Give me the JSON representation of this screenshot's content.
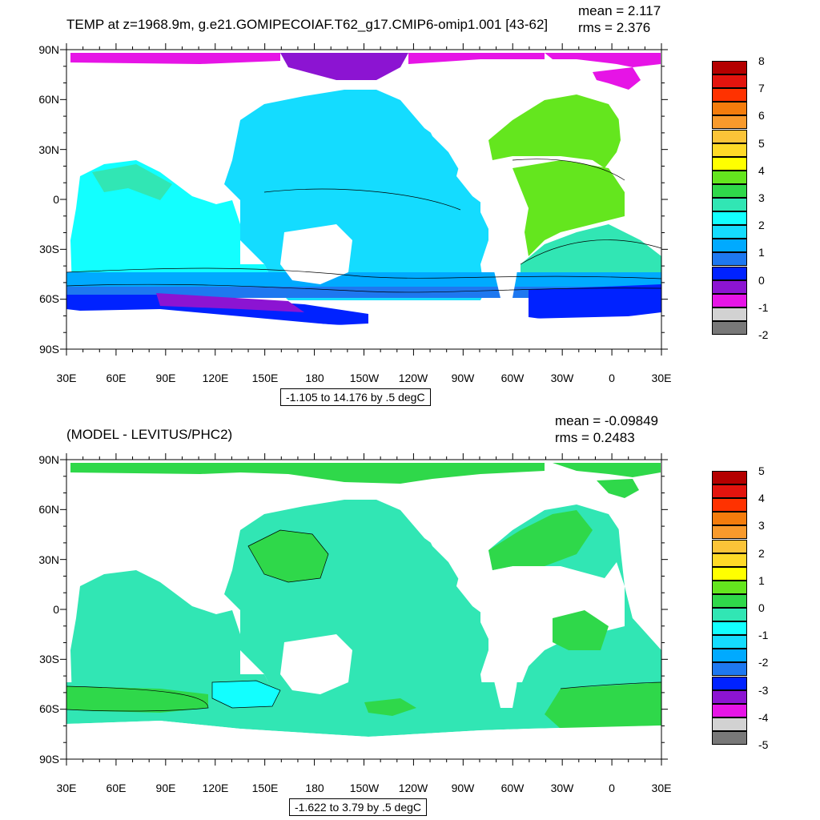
{
  "panels": [
    {
      "title": "TEMP at z=1968.9m, g.e21.GOMIPECOIAF.T62_g17.CMIP6-omip1.001 [43-62]",
      "mean_text": "mean = 2.117",
      "rms_text": "rms = 2.376",
      "range_text": "-1.105 to 14.176 by .5 degC",
      "colorbar_labels": [
        "8",
        "7",
        "6",
        "5",
        "4",
        "3",
        "2",
        "1",
        "0",
        "-1",
        "-2"
      ]
    },
    {
      "title": "(MODEL - LEVITUS/PHC2)",
      "mean_text": "mean = -0.09849",
      "rms_text": "rms = 0.2483",
      "range_text": "-1.622 to 3.79 by .5 degC",
      "colorbar_labels": [
        "5",
        "4",
        "3",
        "2",
        "1",
        "0",
        "-1",
        "-2",
        "-3",
        "-4",
        "-5"
      ]
    }
  ],
  "lat_labels": [
    "90N",
    "60N",
    "30N",
    "0",
    "30S",
    "60S",
    "90S"
  ],
  "lon_labels": [
    "30E",
    "60E",
    "90E",
    "120E",
    "150E",
    "180",
    "150W",
    "120W",
    "90W",
    "60W",
    "30W",
    "0",
    "30E"
  ],
  "colorbar_colors": [
    "#b40000",
    "#e3140e",
    "#ff3200",
    "#f47c0c",
    "#f89a2c",
    "#fbc438",
    "#ffda27",
    "#ffff00",
    "#64e61e",
    "#2fd84a",
    "#31e6b4",
    "#12ffff",
    "#14dcff",
    "#00aaff",
    "#1e78f0",
    "#0022ff",
    "#8c14d2",
    "#e614e6",
    "#d2d2d2",
    "#787878"
  ],
  "field_colors": {
    "land": "#ffffff",
    "arctic": "#e614e6",
    "arctic2": "#8c14d2",
    "atlantic": "#64e61e",
    "pacific": "#14dcff",
    "indian": "#12ffff",
    "teal": "#31e6b4",
    "southern1": "#1e78f0",
    "southern2": "#0022ff",
    "diff_main": "#31e6b4",
    "diff_green": "#2fd84a",
    "diff_cyan": "#12ffff"
  }
}
